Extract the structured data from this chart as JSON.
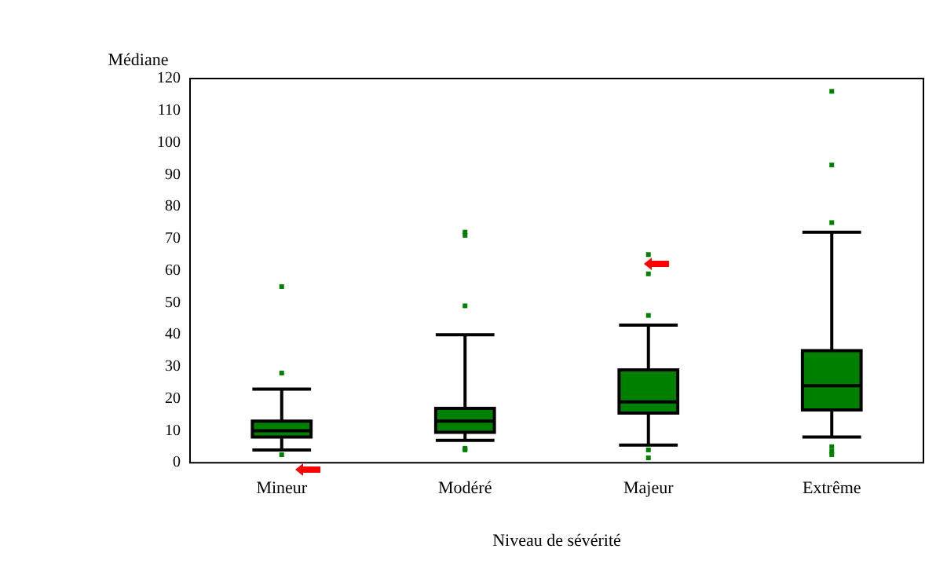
{
  "chart_data": {
    "type": "box",
    "xlabel": "Niveau de sévérité",
    "ylabel": "Médiane",
    "categories": [
      "Mineur",
      "Modéré",
      "Majeur",
      "Extrême"
    ],
    "color": "#008000",
    "ylim": [
      0,
      120
    ],
    "yticks": [
      0,
      10,
      20,
      30,
      40,
      50,
      60,
      70,
      80,
      90,
      100,
      110,
      120
    ],
    "grid": false,
    "legend": false,
    "boxes": [
      {
        "low": 4,
        "q1": 8,
        "median": 10,
        "q3": 13,
        "high": 23,
        "outliers": [
          2.5,
          28,
          55
        ]
      },
      {
        "low": 7,
        "q1": 9.5,
        "median": 13,
        "q3": 17,
        "high": 40,
        "outliers": [
          4,
          4.5,
          49,
          71,
          72
        ]
      },
      {
        "low": 5.5,
        "q1": 15.5,
        "median": 19,
        "q3": 29,
        "high": 43,
        "outliers": [
          1.5,
          4,
          46,
          59,
          65
        ]
      },
      {
        "low": 8,
        "q1": 16.5,
        "median": 24,
        "q3": 35,
        "high": 72,
        "outliers": [
          2.5,
          3.5,
          5,
          75,
          93,
          116
        ]
      }
    ]
  }
}
